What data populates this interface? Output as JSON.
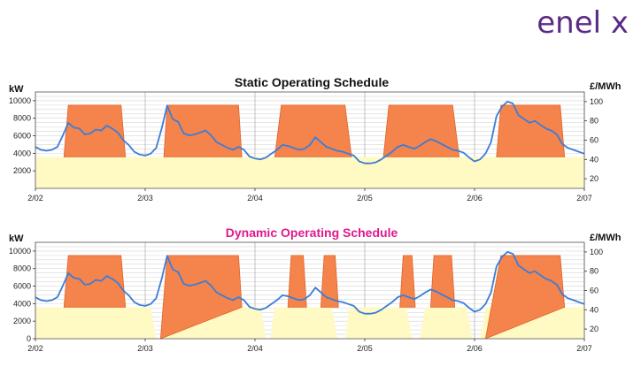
{
  "logo": "enel x",
  "chart_data": [
    {
      "type": "area",
      "title": "Static Operating Schedule",
      "ylabel_left": "kW",
      "ylabel_right": "£/MWh",
      "ylim_left": [
        0,
        11000
      ],
      "yticks_left": [
        2000,
        4000,
        6000,
        8000,
        10000
      ],
      "ylim_right": [
        10,
        110
      ],
      "yticks_right": [
        20,
        40,
        60,
        80,
        100
      ],
      "xlim_days": [
        0,
        5
      ],
      "x_tick_labels": [
        "2/02",
        "2/03",
        "2/04",
        "2/05",
        "2/06",
        "2/07"
      ],
      "grid": true,
      "series": [
        {
          "kind": "base_load",
          "color": "#fff9c4",
          "x": [
            0,
            5
          ],
          "y": [
            3600,
            3600
          ]
        },
        {
          "kind": "operating_blocks",
          "color": "#f4844b",
          "blocks": [
            {
              "x": [
                0.26,
                0.3,
                0.78,
                0.82
              ],
              "y": [
                3600,
                9500,
                9500,
                3600
              ]
            },
            {
              "x": [
                1.17,
                1.2,
                1.85,
                1.88
              ],
              "y": [
                3600,
                9500,
                9500,
                3600
              ]
            },
            {
              "x": [
                2.18,
                2.24,
                2.82,
                2.88
              ],
              "y": [
                3600,
                9500,
                9500,
                3600
              ]
            },
            {
              "x": [
                3.17,
                3.22,
                3.8,
                3.86
              ],
              "y": [
                3600,
                9500,
                9500,
                3600
              ]
            },
            {
              "x": [
                4.2,
                4.24,
                4.78,
                4.82
              ],
              "y": [
                3600,
                9500,
                9500,
                3600
              ]
            }
          ]
        },
        {
          "kind": "price",
          "axis": "right",
          "color": "#3b7dd8",
          "x": [
            0,
            0.05,
            0.1,
            0.15,
            0.2,
            0.25,
            0.3,
            0.35,
            0.4,
            0.45,
            0.5,
            0.55,
            0.6,
            0.65,
            0.7,
            0.75,
            0.8,
            0.85,
            0.9,
            0.95,
            1.0,
            1.05,
            1.1,
            1.15,
            1.2,
            1.25,
            1.3,
            1.35,
            1.4,
            1.45,
            1.5,
            1.55,
            1.6,
            1.65,
            1.7,
            1.75,
            1.8,
            1.85,
            1.9,
            1.95,
            2.0,
            2.05,
            2.1,
            2.15,
            2.2,
            2.25,
            2.3,
            2.35,
            2.4,
            2.45,
            2.5,
            2.55,
            2.6,
            2.65,
            2.7,
            2.75,
            2.8,
            2.85,
            2.9,
            2.95,
            3.0,
            3.05,
            3.1,
            3.15,
            3.2,
            3.25,
            3.3,
            3.35,
            3.4,
            3.45,
            3.5,
            3.55,
            3.6,
            3.65,
            3.7,
            3.75,
            3.8,
            3.85,
            3.9,
            3.95,
            4.0,
            4.05,
            4.1,
            4.15,
            4.2,
            4.25,
            4.3,
            4.35,
            4.4,
            4.45,
            4.5,
            4.55,
            4.6,
            4.65,
            4.7,
            4.75,
            4.8,
            4.85,
            4.9,
            4.95,
            5.0
          ],
          "y": [
            53,
            50,
            49,
            50,
            53,
            65,
            78,
            73,
            72,
            66,
            67,
            71,
            70,
            75,
            72,
            68,
            60,
            55,
            48,
            45,
            44,
            46,
            52,
            72,
            96,
            82,
            79,
            67,
            65,
            66,
            68,
            70,
            65,
            58,
            55,
            52,
            50,
            53,
            50,
            43,
            41,
            40,
            42,
            46,
            50,
            55,
            54,
            52,
            50,
            51,
            55,
            63,
            58,
            53,
            51,
            49,
            48,
            46,
            44,
            38,
            36,
            36,
            37,
            40,
            44,
            48,
            53,
            55,
            53,
            51,
            54,
            58,
            61,
            59,
            56,
            53,
            50,
            49,
            47,
            42,
            38,
            40,
            46,
            58,
            85,
            95,
            100,
            98,
            86,
            82,
            78,
            80,
            76,
            72,
            70,
            66,
            56,
            52,
            50,
            48,
            46
          ]
        }
      ]
    },
    {
      "type": "area",
      "title": "Dynamic Operating Schedule",
      "ylabel_left": "kW",
      "ylabel_right": "£/MWh",
      "ylim_left": [
        0,
        11000
      ],
      "yticks_left": [
        0,
        2000,
        4000,
        6000,
        8000,
        10000
      ],
      "ylim_right": [
        10,
        110
      ],
      "yticks_right": [
        20,
        40,
        60,
        80,
        100
      ],
      "xlim_days": [
        0,
        5
      ],
      "x_tick_labels": [
        "2/02",
        "2/03",
        "2/04",
        "2/05",
        "2/06",
        "2/07"
      ],
      "grid": true,
      "series": [
        {
          "kind": "base_load",
          "color": "#fff9c4",
          "segments": [
            {
              "x": [
                0,
                1.05,
                1.1
              ],
              "y": [
                3600,
                3600,
                0
              ]
            },
            {
              "x": [
                1.14,
                1.16,
                2.05,
                2.1
              ],
              "y": [
                0,
                3600,
                3600,
                0
              ]
            },
            {
              "x": [
                2.14,
                2.18,
                2.7,
                2.75
              ],
              "y": [
                0,
                3600,
                3600,
                0
              ]
            },
            {
              "x": [
                2.82,
                2.86,
                3.38,
                3.43
              ],
              "y": [
                0,
                3600,
                3600,
                0
              ]
            },
            {
              "x": [
                3.5,
                3.55,
                3.93,
                3.98
              ],
              "y": [
                0,
                3600,
                3600,
                0
              ]
            },
            {
              "x": [
                4.05,
                4.1,
                5.0
              ],
              "y": [
                0,
                3600,
                3600
              ]
            }
          ]
        },
        {
          "kind": "operating_blocks",
          "color": "#f4844b",
          "blocks": [
            {
              "x": [
                0.26,
                0.3,
                0.78,
                0.82
              ],
              "y": [
                3600,
                9500,
                9500,
                3600
              ]
            },
            {
              "x": [
                1.14,
                1.2,
                1.85,
                1.88
              ],
              "y": [
                0,
                9500,
                9500,
                3600
              ]
            },
            {
              "x": [
                2.3,
                2.33,
                2.44,
                2.47
              ],
              "y": [
                3600,
                9500,
                9500,
                3600
              ]
            },
            {
              "x": [
                2.6,
                2.63,
                2.73,
                2.76
              ],
              "y": [
                3600,
                9500,
                9500,
                3600
              ]
            },
            {
              "x": [
                3.32,
                3.35,
                3.43,
                3.46
              ],
              "y": [
                3600,
                9500,
                9500,
                3600
              ]
            },
            {
              "x": [
                3.6,
                3.63,
                3.79,
                3.82
              ],
              "y": [
                3600,
                9500,
                9500,
                3600
              ]
            },
            {
              "x": [
                4.1,
                4.24,
                4.78,
                4.82
              ],
              "y": [
                0,
                9500,
                9500,
                3600
              ]
            }
          ]
        },
        {
          "kind": "price",
          "axis": "right",
          "color": "#3b7dd8",
          "x": [
            0,
            0.05,
            0.1,
            0.15,
            0.2,
            0.25,
            0.3,
            0.35,
            0.4,
            0.45,
            0.5,
            0.55,
            0.6,
            0.65,
            0.7,
            0.75,
            0.8,
            0.85,
            0.9,
            0.95,
            1.0,
            1.05,
            1.1,
            1.15,
            1.2,
            1.25,
            1.3,
            1.35,
            1.4,
            1.45,
            1.5,
            1.55,
            1.6,
            1.65,
            1.7,
            1.75,
            1.8,
            1.85,
            1.9,
            1.95,
            2.0,
            2.05,
            2.1,
            2.15,
            2.2,
            2.25,
            2.3,
            2.35,
            2.4,
            2.45,
            2.5,
            2.55,
            2.6,
            2.65,
            2.7,
            2.75,
            2.8,
            2.85,
            2.9,
            2.95,
            3.0,
            3.05,
            3.1,
            3.15,
            3.2,
            3.25,
            3.3,
            3.35,
            3.4,
            3.45,
            3.5,
            3.55,
            3.6,
            3.65,
            3.7,
            3.75,
            3.8,
            3.85,
            3.9,
            3.95,
            4.0,
            4.05,
            4.1,
            4.15,
            4.2,
            4.25,
            4.3,
            4.35,
            4.4,
            4.45,
            4.5,
            4.55,
            4.6,
            4.65,
            4.7,
            4.75,
            4.8,
            4.85,
            4.9,
            4.95,
            5.0
          ],
          "y": [
            53,
            50,
            49,
            50,
            53,
            65,
            78,
            73,
            72,
            66,
            67,
            71,
            70,
            75,
            72,
            68,
            60,
            55,
            48,
            45,
            44,
            46,
            52,
            72,
            96,
            82,
            79,
            67,
            65,
            66,
            68,
            70,
            65,
            58,
            55,
            52,
            50,
            53,
            50,
            43,
            41,
            40,
            42,
            46,
            50,
            55,
            54,
            52,
            50,
            51,
            55,
            63,
            58,
            53,
            51,
            49,
            48,
            46,
            44,
            38,
            36,
            36,
            37,
            40,
            44,
            48,
            53,
            55,
            53,
            51,
            54,
            58,
            61,
            59,
            56,
            53,
            50,
            49,
            47,
            42,
            38,
            40,
            46,
            58,
            85,
            95,
            100,
            98,
            86,
            82,
            78,
            80,
            76,
            72,
            70,
            66,
            56,
            52,
            50,
            48,
            46
          ]
        }
      ]
    }
  ]
}
